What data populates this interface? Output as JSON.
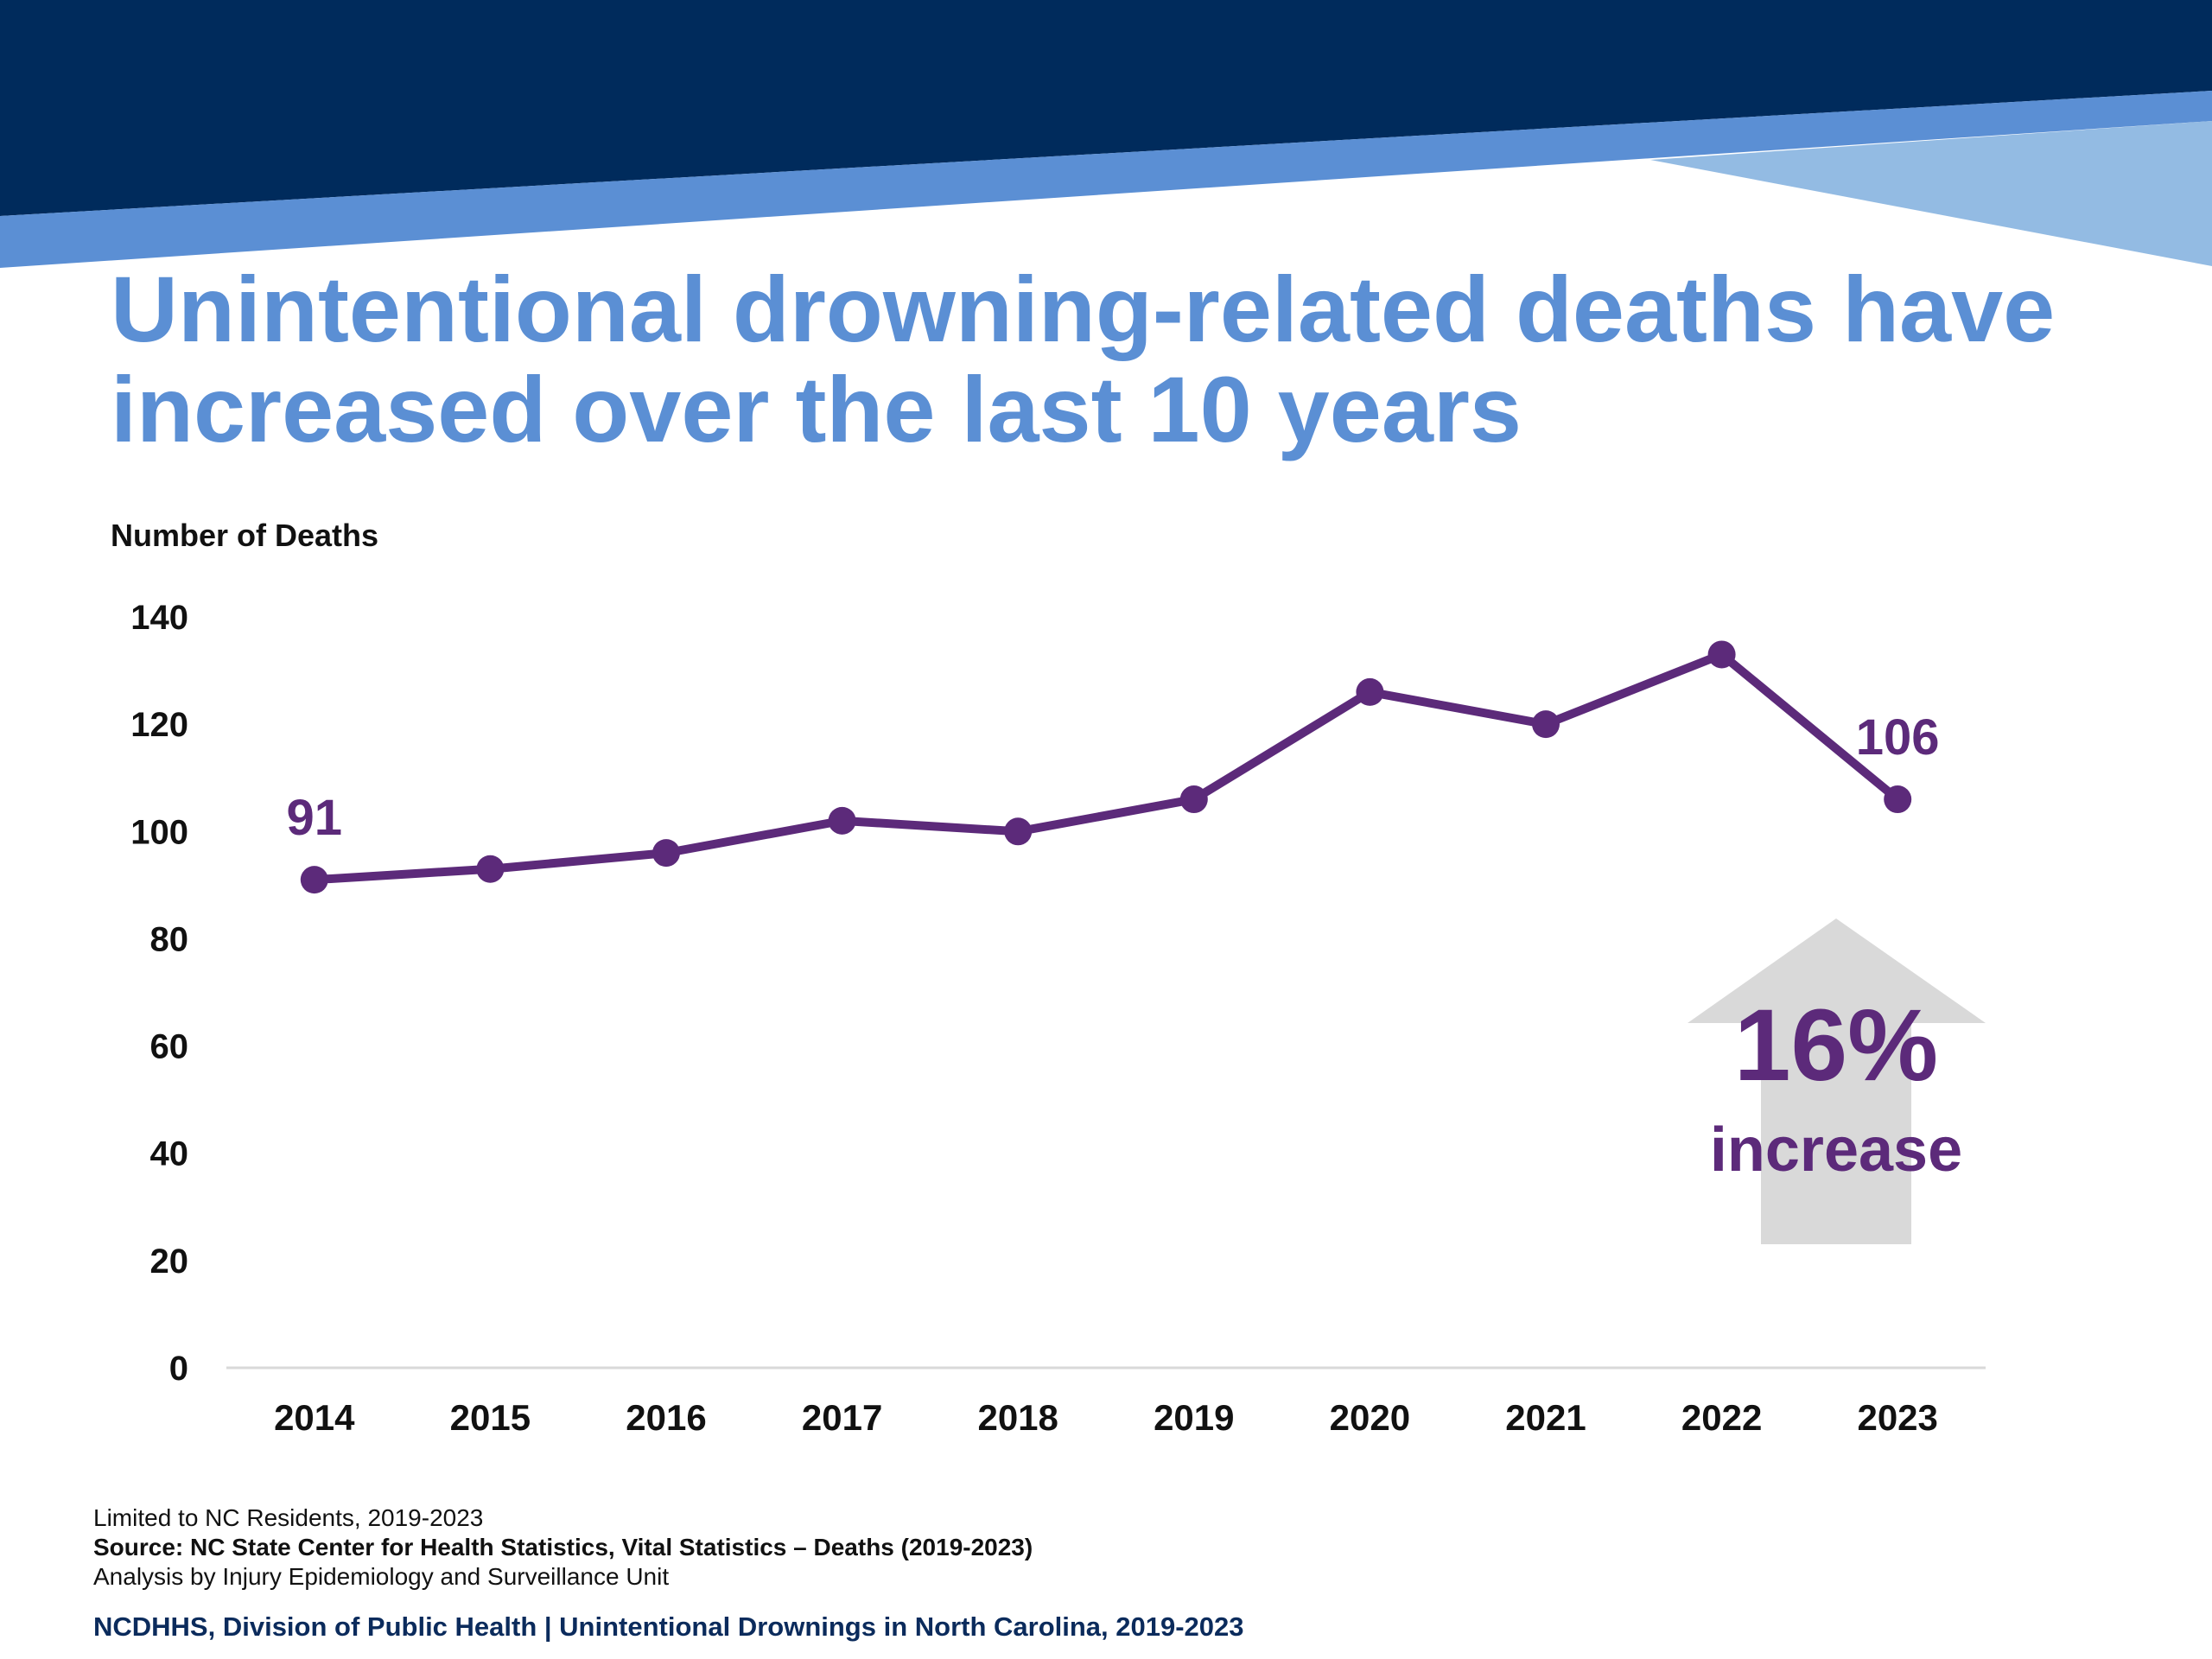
{
  "title": "Unintentional drowning-related deaths have increased over the last 10 years",
  "colors": {
    "navy": "#002b5c",
    "mid_blue": "#5b8fd4",
    "light_blue": "#93bbe3",
    "series": "#5c2a7a",
    "arrow": "#d9d9d9"
  },
  "chart_data": {
    "type": "line",
    "ylabel": "Number of Deaths",
    "xlabel": "",
    "ylim": [
      0,
      140
    ],
    "yticks": [
      "0",
      "20",
      "40",
      "60",
      "80",
      "100",
      "120",
      "140"
    ],
    "categories": [
      "2014",
      "2015",
      "2016",
      "2017",
      "2018",
      "2019",
      "2020",
      "2021",
      "2022",
      "2023"
    ],
    "series": [
      {
        "values": [
          91,
          93,
          96,
          102,
          100,
          106,
          126,
          120,
          133,
          106
        ]
      }
    ],
    "data_labels": [
      {
        "category": "2014",
        "text": "91"
      },
      {
        "category": "2023",
        "text": "106"
      }
    ],
    "grid": false,
    "annotation": {
      "value": "16%",
      "text": "increase",
      "icon": "up-arrow-icon"
    }
  },
  "footer": {
    "note1": "Limited to NC Residents, 2019-2023",
    "source": "Source: NC State Center for Health Statistics, Vital Statistics – Deaths (2019-2023)",
    "analysis": "Analysis by Injury Epidemiology and Surveillance Unit",
    "brand": "NCDHHS, Division of Public Health | Unintentional Drownings in North Carolina, 2019-2023"
  }
}
